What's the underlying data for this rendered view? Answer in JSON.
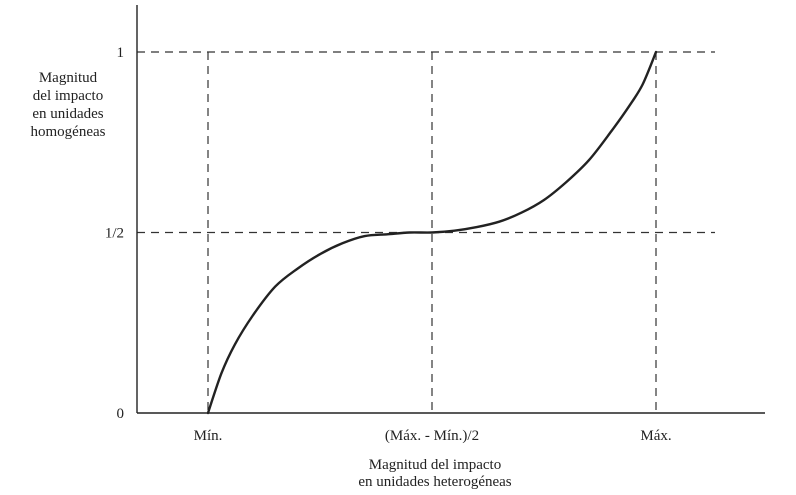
{
  "chart_data": {
    "type": "line",
    "title": "",
    "ylabel_lines": [
      "Magnitud",
      "del impacto",
      "en unidades",
      "homogéneas"
    ],
    "xlabel_lines": [
      "Magnitud del impacto",
      "en unidades heterogéneas"
    ],
    "x_ticks": [
      {
        "value": 0,
        "label": "Mín."
      },
      {
        "value": 0.5,
        "label": "(Máx. - Mín.)/2"
      },
      {
        "value": 1,
        "label": "Máx."
      }
    ],
    "y_ticks": [
      {
        "value": 0,
        "label": "0"
      },
      {
        "value": 0.5,
        "label": "1/2"
      },
      {
        "value": 1,
        "label": "1"
      }
    ],
    "xlim": [
      -0.15,
      1.3
    ],
    "ylim": [
      0,
      1.13
    ],
    "grid": "dashed guide lines at tick values",
    "series": [
      {
        "x": [
          0,
          0.03,
          0.06,
          0.1,
          0.15,
          0.2,
          0.25,
          0.3,
          0.35,
          0.4,
          0.45,
          0.5,
          0.55,
          0.6,
          0.65,
          0.7,
          0.75,
          0.8,
          0.85,
          0.9,
          0.94,
          0.97,
          1
        ],
        "y": [
          0,
          0.11,
          0.19,
          0.27,
          0.35,
          0.4,
          0.44,
          0.47,
          0.49,
          0.495,
          0.5,
          0.5,
          0.505,
          0.515,
          0.53,
          0.555,
          0.59,
          0.64,
          0.7,
          0.78,
          0.85,
          0.91,
          1
        ]
      }
    ]
  }
}
